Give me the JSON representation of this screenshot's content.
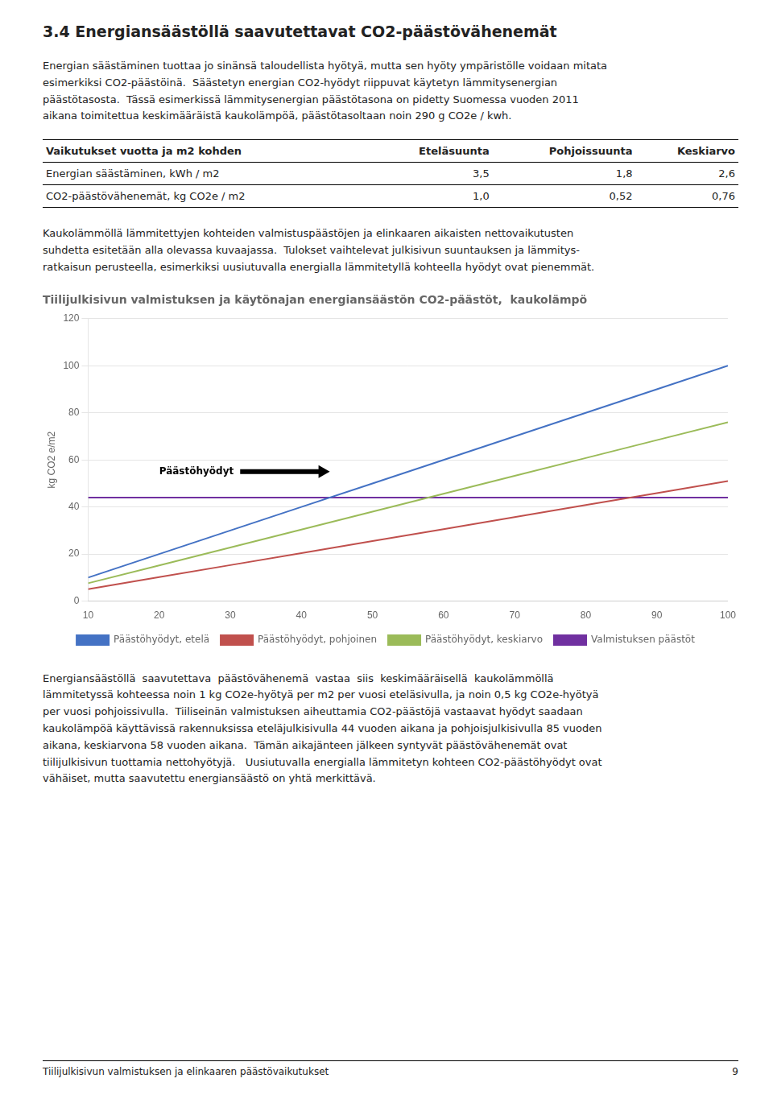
{
  "section_title": "3.4  Energiansäästöllä saavutettavat CO2-päästövähenemät",
  "paragraph_intro": "Energian säästäminen tuottaa jo sinänsä taloudellista hyötyä, mutta sen hyöty ympäristölle voidaan mitata\nesimerkiksi CO2-päästöinä.  Säästetyn energian CO2-hyödyt riippuvat käytetyn lämmitysenergian\npäästötasosta.  Tässä esimerkissä lämmitysenergian päästötasona on pidetty Suomessa vuoden 2011\naikana toimitettua keskimääräistä kaukolämpöä, päästötasoltaan noin 290 g CO2e / kwh.",
  "table": {
    "header": [
      "Vaikutukset vuotta ja m2 kohden",
      "Eteläsuunta",
      "Pohjoissuunta",
      "Keskiarvo"
    ],
    "rows": [
      [
        "Energian säästäminen, kWh / m2",
        "3,5",
        "1,8",
        "2,6"
      ],
      [
        "CO2-päästövähenemät, kg CO2e / m2",
        "1,0",
        "0,52",
        "0,76"
      ]
    ]
  },
  "paragraph_below": "Kaukolämmöllä lämmitettyjen kohteiden valmistuspäästöjen ja elinkaaren aikaisten nettovaikutusten\nsuhdetta esitetään alla olevassa kuvaajassa.  Tulokset vaihtelevat julkisivun suuntauksen ja lämmitys-\nratkaisun perusteella, esimerkiksi uusiutuvalla energialla lämmitetyllä kohteella hyödyt ovat pienemmät.",
  "chart_data": {
    "type": "line",
    "title": "Tiilijulkisivun valmistuksen ja käytönajan energiansäästön CO2-päästöt,  kaukolämpö",
    "ylabel": "kg CO2 e/m2",
    "x": [
      10,
      20,
      30,
      40,
      50,
      60,
      70,
      80,
      90,
      100
    ],
    "series": [
      {
        "name": "Päästöhyödyt, etelä",
        "color": "#4472C4",
        "values": [
          10.0,
          20.0,
          30.0,
          40.0,
          50.0,
          60.0,
          70.0,
          80.0,
          90.0,
          100.0
        ]
      },
      {
        "name": "Päästöhyödyt, pohjoinen",
        "color": "#C0504D",
        "values": [
          5.1,
          10.2,
          15.3,
          20.4,
          25.5,
          30.6,
          35.7,
          40.8,
          45.9,
          51.0
        ]
      },
      {
        "name": "Päästöhyödyt, keskiarvo",
        "color": "#9BBB59",
        "values": [
          7.6,
          15.2,
          22.8,
          30.4,
          38.0,
          45.6,
          53.2,
          60.8,
          68.4,
          76.0
        ]
      },
      {
        "name": "Valmistuksen päästöt",
        "color": "#7030A0",
        "values": [
          44.0,
          44.0,
          44.0,
          44.0,
          44.0,
          44.0,
          44.0,
          44.0,
          44.0,
          44.0
        ]
      }
    ],
    "xlim": [
      10,
      100
    ],
    "xticks": [
      10,
      20,
      30,
      40,
      50,
      60,
      70,
      80,
      90,
      100
    ],
    "ylim": [
      0,
      120
    ],
    "yticks": [
      0,
      20,
      40,
      60,
      80,
      100,
      120
    ],
    "grid": "y",
    "legend": "bottom",
    "annotations": [
      {
        "text": "Päästöhyödyt",
        "x": 20,
        "y": 55,
        "arrow_x": 44,
        "arrow_y": 55
      }
    ]
  },
  "paragraph_bottom": "Energiansäästöllä  saavutettava  päästövähenemä  vastaa  siis  keskimääräisellä  kaukolämmöllä\nlämmitetyssä kohteessa noin 1 kg CO2e-hyötyä per m2 per vuosi eteläsivulla, ja noin 0,5 kg CO2e-hyötyä\nper vuosi pohjoissivulla.  Tiiliseinän valmistuksen aiheuttamia CO2-päästöjä vastaavat hyödyt saadaan\nkaukolämpöä käyttävissä rakennuksissa eteläjulkisivulla 44 vuoden aikana ja pohjoisjulkisivulla 85 vuoden\naikana, keskiarvona 58 vuoden aikana.  Tämän aikajänteen jälkeen syntyvät päästövähenemät ovat\ntiilijulkisivun tuottamia nettohyötyjä.   Uusiutuvalla energialla lämmitetyn kohteen CO2-päästöhyödyt ovat\nvähäiset, mutta saavutettu energiansäästö on yhtä merkittävä.",
  "footer_left": "Tiilijulkisivun valmistuksen ja elinkaaren päästövaikutukset",
  "footer_right": "9"
}
